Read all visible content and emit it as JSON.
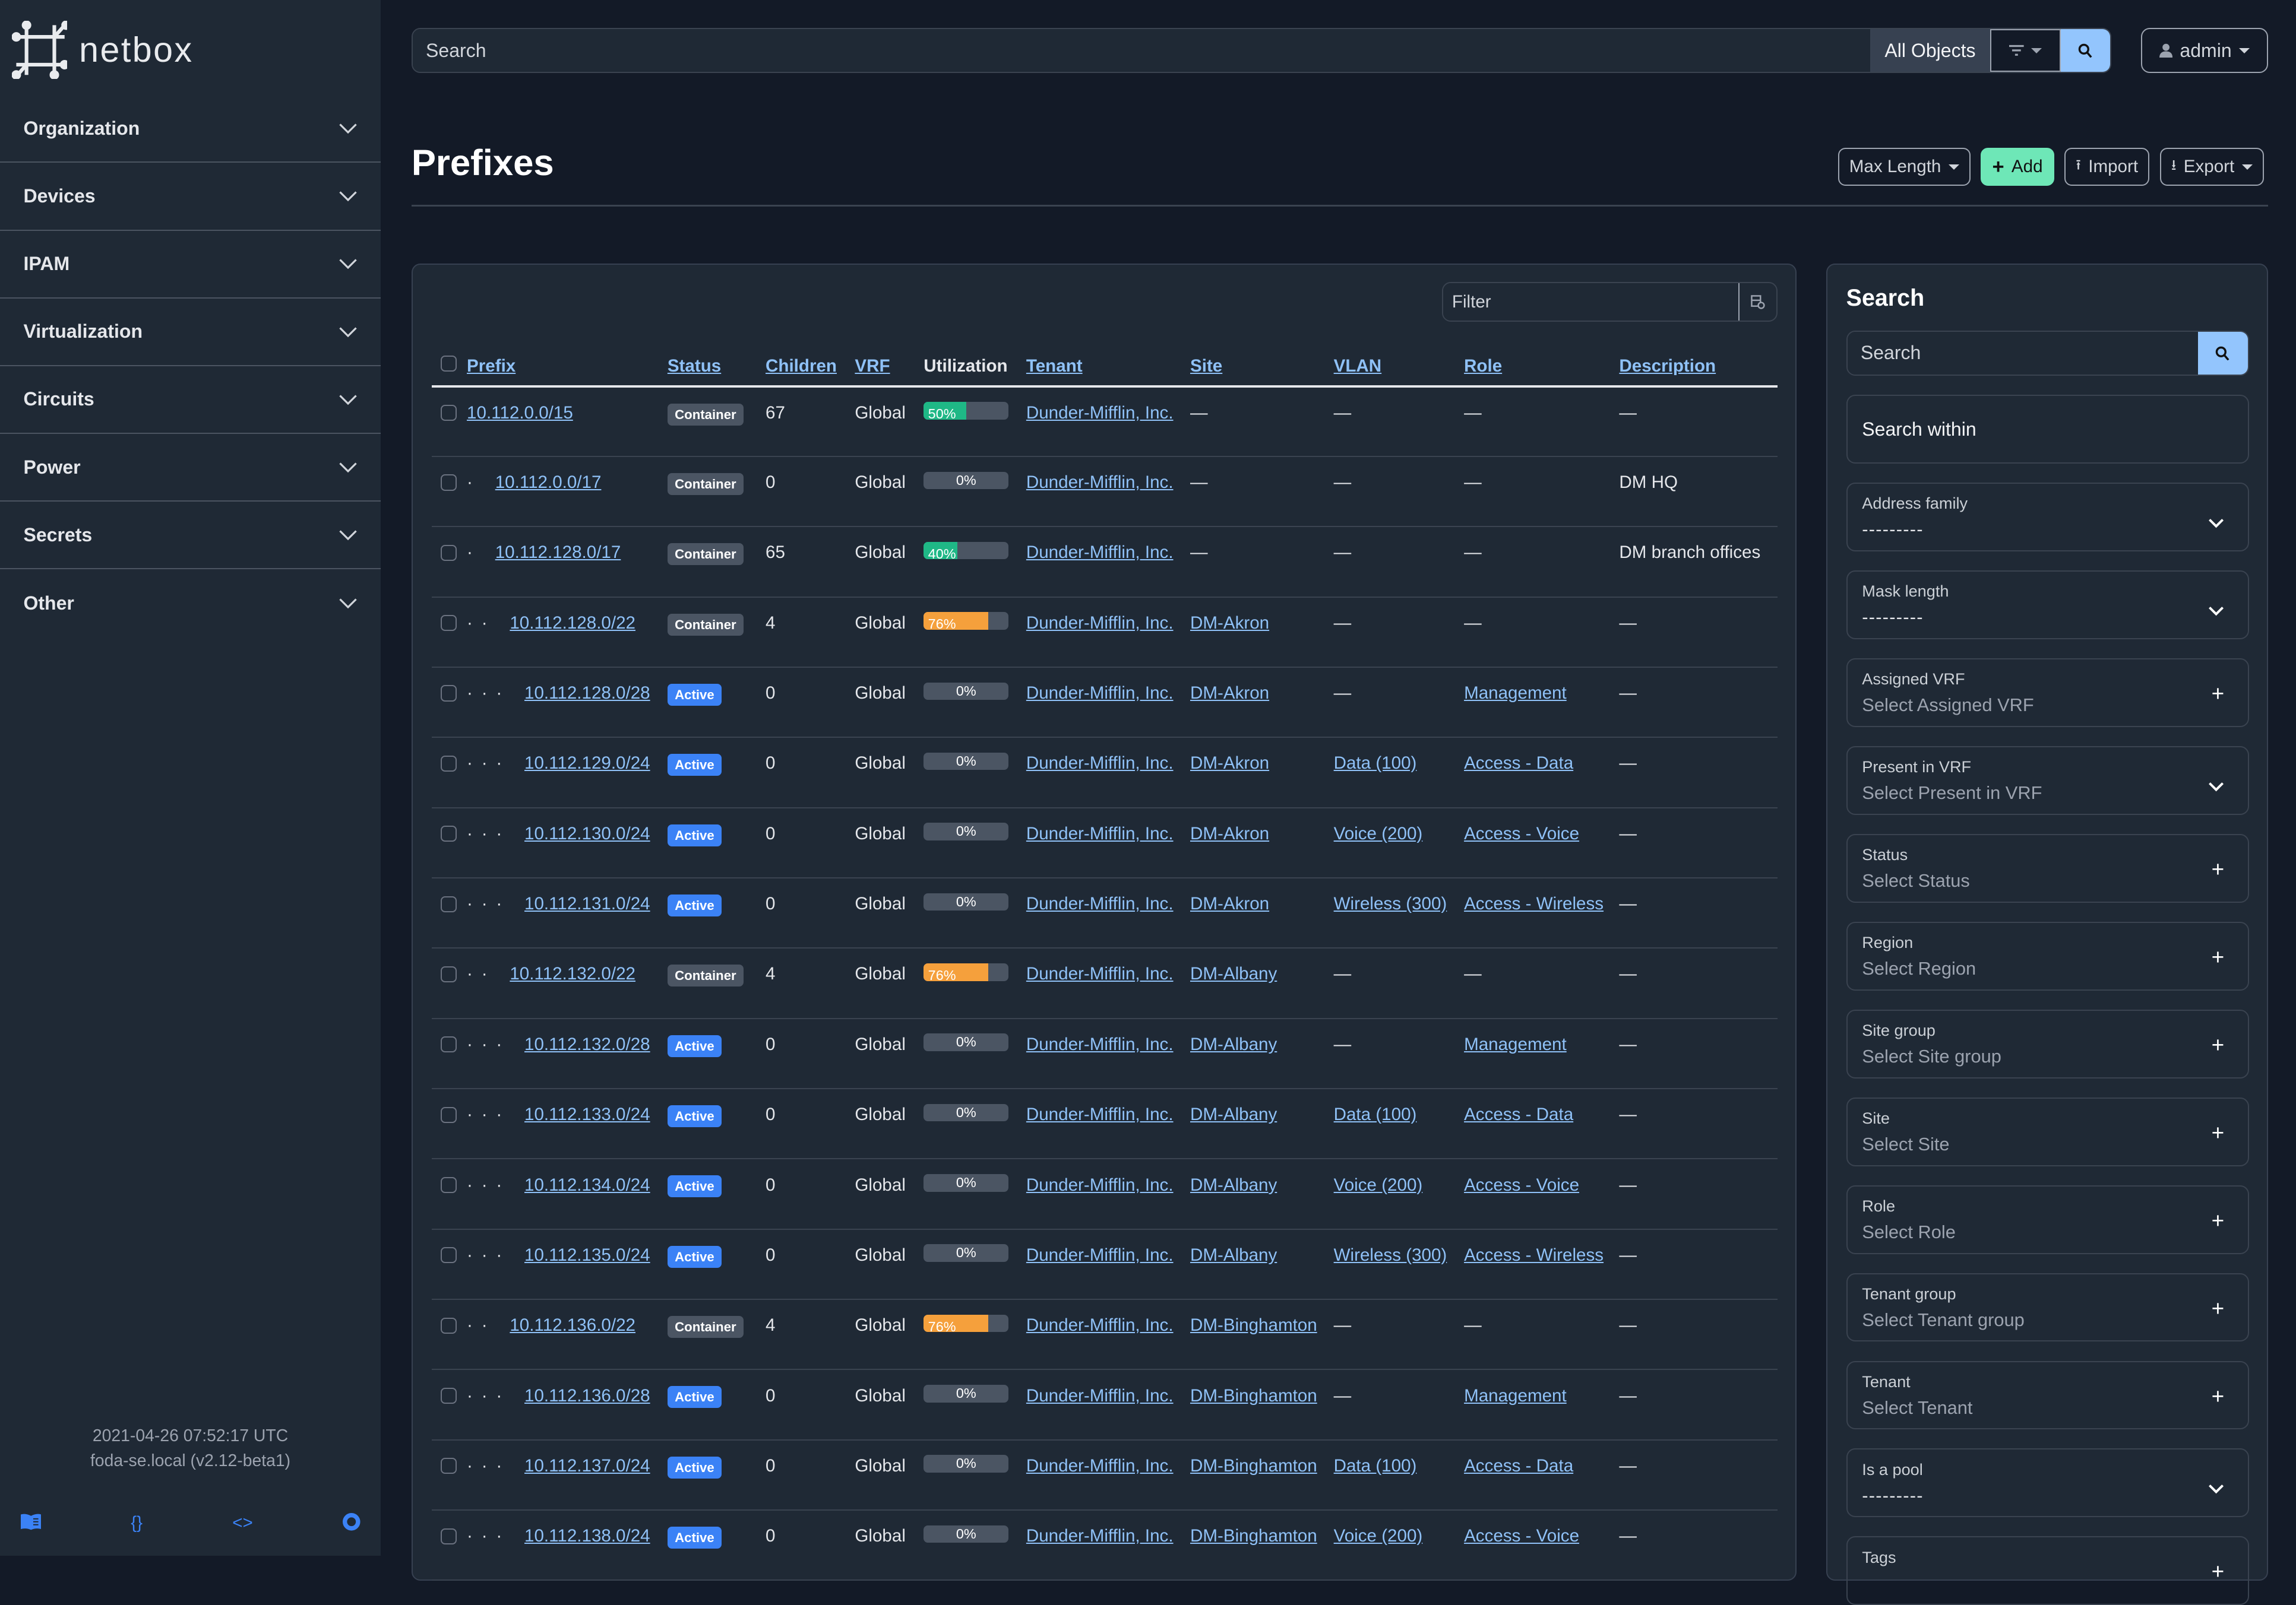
{
  "app": {
    "name": "netbox"
  },
  "sidebar": {
    "items": [
      {
        "label": "Organization"
      },
      {
        "label": "Devices"
      },
      {
        "label": "IPAM"
      },
      {
        "label": "Virtualization"
      },
      {
        "label": "Circuits"
      },
      {
        "label": "Power"
      },
      {
        "label": "Secrets"
      },
      {
        "label": "Other"
      }
    ],
    "footer_time": "2021-04-26 07:52:17 UTC",
    "footer_host": "foda-se.local (v2.12-beta1)",
    "footer_icons": [
      "book-icon",
      "braces-icon",
      "code-icon",
      "lifebuoy-icon"
    ]
  },
  "topbar": {
    "search_placeholder": "Search",
    "scope": "All Objects",
    "user": "admin"
  },
  "page": {
    "title": "Prefixes",
    "actions": {
      "max_length": "Max Length",
      "add": "Add",
      "import": "Import",
      "export": "Export"
    }
  },
  "table": {
    "filter_placeholder": "Filter",
    "columns": [
      "Prefix",
      "Status",
      "Children",
      "VRF",
      "Utilization",
      "Tenant",
      "Site",
      "VLAN",
      "Role",
      "Description"
    ],
    "rows": [
      {
        "depth": 0,
        "prefix": "10.112.0.0/15",
        "status": "Container",
        "children": "67",
        "vrf": "Global",
        "util": 50,
        "tenant": "Dunder-Mifflin, Inc.",
        "site": "—",
        "vlan": "—",
        "role": "—",
        "desc": "—"
      },
      {
        "depth": 1,
        "prefix": "10.112.0.0/17",
        "status": "Container",
        "children": "0",
        "vrf": "Global",
        "util": 0,
        "tenant": "Dunder-Mifflin, Inc.",
        "site": "—",
        "vlan": "—",
        "role": "—",
        "desc": "DM HQ"
      },
      {
        "depth": 1,
        "prefix": "10.112.128.0/17",
        "status": "Container",
        "children": "65",
        "vrf": "Global",
        "util": 40,
        "tenant": "Dunder-Mifflin, Inc.",
        "site": "—",
        "vlan": "—",
        "role": "—",
        "desc": "DM branch offices"
      },
      {
        "depth": 2,
        "prefix": "10.112.128.0/22",
        "status": "Container",
        "children": "4",
        "vrf": "Global",
        "util": 76,
        "tenant": "Dunder-Mifflin, Inc.",
        "site": "DM-Akron",
        "vlan": "—",
        "role": "—",
        "desc": "—"
      },
      {
        "depth": 3,
        "prefix": "10.112.128.0/28",
        "status": "Active",
        "children": "0",
        "vrf": "Global",
        "util": 0,
        "tenant": "Dunder-Mifflin, Inc.",
        "site": "DM-Akron",
        "vlan": "—",
        "role": "Management",
        "desc": "—"
      },
      {
        "depth": 3,
        "prefix": "10.112.129.0/24",
        "status": "Active",
        "children": "0",
        "vrf": "Global",
        "util": 0,
        "tenant": "Dunder-Mifflin, Inc.",
        "site": "DM-Akron",
        "vlan": "Data (100)",
        "role": "Access - Data",
        "desc": "—"
      },
      {
        "depth": 3,
        "prefix": "10.112.130.0/24",
        "status": "Active",
        "children": "0",
        "vrf": "Global",
        "util": 0,
        "tenant": "Dunder-Mifflin, Inc.",
        "site": "DM-Akron",
        "vlan": "Voice (200)",
        "role": "Access - Voice",
        "desc": "—"
      },
      {
        "depth": 3,
        "prefix": "10.112.131.0/24",
        "status": "Active",
        "children": "0",
        "vrf": "Global",
        "util": 0,
        "tenant": "Dunder-Mifflin, Inc.",
        "site": "DM-Akron",
        "vlan": "Wireless (300)",
        "role": "Access - Wireless",
        "desc": "—"
      },
      {
        "depth": 2,
        "prefix": "10.112.132.0/22",
        "status": "Container",
        "children": "4",
        "vrf": "Global",
        "util": 76,
        "tenant": "Dunder-Mifflin, Inc.",
        "site": "DM-Albany",
        "vlan": "—",
        "role": "—",
        "desc": "—"
      },
      {
        "depth": 3,
        "prefix": "10.112.132.0/28",
        "status": "Active",
        "children": "0",
        "vrf": "Global",
        "util": 0,
        "tenant": "Dunder-Mifflin, Inc.",
        "site": "DM-Albany",
        "vlan": "—",
        "role": "Management",
        "desc": "—"
      },
      {
        "depth": 3,
        "prefix": "10.112.133.0/24",
        "status": "Active",
        "children": "0",
        "vrf": "Global",
        "util": 0,
        "tenant": "Dunder-Mifflin, Inc.",
        "site": "DM-Albany",
        "vlan": "Data (100)",
        "role": "Access - Data",
        "desc": "—"
      },
      {
        "depth": 3,
        "prefix": "10.112.134.0/24",
        "status": "Active",
        "children": "0",
        "vrf": "Global",
        "util": 0,
        "tenant": "Dunder-Mifflin, Inc.",
        "site": "DM-Albany",
        "vlan": "Voice (200)",
        "role": "Access - Voice",
        "desc": "—"
      },
      {
        "depth": 3,
        "prefix": "10.112.135.0/24",
        "status": "Active",
        "children": "0",
        "vrf": "Global",
        "util": 0,
        "tenant": "Dunder-Mifflin, Inc.",
        "site": "DM-Albany",
        "vlan": "Wireless (300)",
        "role": "Access - Wireless",
        "desc": "—"
      },
      {
        "depth": 2,
        "prefix": "10.112.136.0/22",
        "status": "Container",
        "children": "4",
        "vrf": "Global",
        "util": 76,
        "tenant": "Dunder-Mifflin, Inc.",
        "site": "DM-Binghamton",
        "vlan": "—",
        "role": "—",
        "desc": "—"
      },
      {
        "depth": 3,
        "prefix": "10.112.136.0/28",
        "status": "Active",
        "children": "0",
        "vrf": "Global",
        "util": 0,
        "tenant": "Dunder-Mifflin, Inc.",
        "site": "DM-Binghamton",
        "vlan": "—",
        "role": "Management",
        "desc": "—"
      },
      {
        "depth": 3,
        "prefix": "10.112.137.0/24",
        "status": "Active",
        "children": "0",
        "vrf": "Global",
        "util": 0,
        "tenant": "Dunder-Mifflin, Inc.",
        "site": "DM-Binghamton",
        "vlan": "Data (100)",
        "role": "Access - Data",
        "desc": "—"
      },
      {
        "depth": 3,
        "prefix": "10.112.138.0/24",
        "status": "Active",
        "children": "0",
        "vrf": "Global",
        "util": 0,
        "tenant": "Dunder-Mifflin, Inc.",
        "site": "DM-Binghamton",
        "vlan": "Voice (200)",
        "role": "Access - Voice",
        "desc": "—"
      }
    ]
  },
  "search_panel": {
    "title": "Search",
    "search_placeholder": "Search",
    "search_within": "Search within",
    "fields": [
      {
        "label": "Address family",
        "value": "---------",
        "type": "select"
      },
      {
        "label": "Mask length",
        "value": "---------",
        "type": "select"
      },
      {
        "label": "Assigned VRF",
        "value": "Select Assigned VRF",
        "type": "multi"
      },
      {
        "label": "Present in VRF",
        "value": "Select Present in VRF",
        "type": "select"
      },
      {
        "label": "Status",
        "value": "Select Status",
        "type": "multi"
      },
      {
        "label": "Region",
        "value": "Select Region",
        "type": "multi"
      },
      {
        "label": "Site group",
        "value": "Select Site group",
        "type": "multi"
      },
      {
        "label": "Site",
        "value": "Select Site",
        "type": "multi"
      },
      {
        "label": "Role",
        "value": "Select Role",
        "type": "multi"
      },
      {
        "label": "Tenant group",
        "value": "Select Tenant group",
        "type": "multi"
      },
      {
        "label": "Tenant",
        "value": "Select Tenant",
        "type": "multi"
      },
      {
        "label": "Is a pool",
        "value": "---------",
        "type": "select"
      },
      {
        "label": "Tags",
        "value": "",
        "type": "multi"
      }
    ]
  },
  "colors": {
    "util_low": "#1fb886",
    "util_high": "#f5a03c",
    "active": "#3b82f6",
    "container": "#4b5563",
    "link": "#8fc1f7",
    "add": "#6ee7b7"
  }
}
